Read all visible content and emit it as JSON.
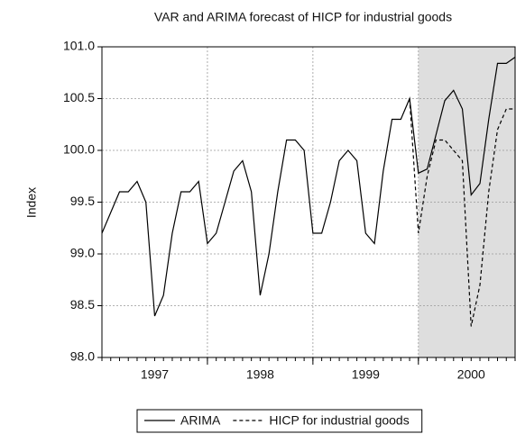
{
  "chart_data": {
    "type": "line",
    "title": "VAR and ARIMA forecast of HICP for industrial goods",
    "y_label": "Index",
    "categories": [
      null,
      null,
      null,
      null,
      null,
      null,
      "1997",
      null,
      null,
      null,
      null,
      null,
      null,
      null,
      null,
      null,
      null,
      null,
      "1998",
      null,
      null,
      null,
      null,
      null,
      null,
      null,
      null,
      null,
      null,
      null,
      "1999",
      null,
      null,
      null,
      null,
      null,
      null,
      null,
      null,
      null,
      null,
      null,
      "2000",
      null,
      null,
      null,
      null,
      null
    ],
    "series": [
      {
        "name": "ARIMA",
        "color": "#000000",
        "dash": "solid",
        "values": [
          99.2,
          99.4,
          99.6,
          99.6,
          99.7,
          99.5,
          98.4,
          98.6,
          99.2,
          99.6,
          99.6,
          99.7,
          99.1,
          99.2,
          99.5,
          99.8,
          99.9,
          99.6,
          98.6,
          99.0,
          99.6,
          100.1,
          100.1,
          100.0,
          99.2,
          99.2,
          99.5,
          99.9,
          100.0,
          99.9,
          99.2,
          99.1,
          99.8,
          100.3,
          100.3,
          100.5,
          99.78,
          99.82,
          100.15,
          100.48,
          100.58,
          100.4,
          99.57,
          99.68,
          100.3,
          100.84,
          100.84,
          100.9
        ]
      },
      {
        "name": "HICP for industrial goods",
        "color": "#000000",
        "dash": "dashed",
        "values": [
          null,
          null,
          null,
          null,
          null,
          null,
          null,
          null,
          null,
          null,
          null,
          null,
          null,
          null,
          null,
          null,
          null,
          null,
          null,
          null,
          null,
          null,
          null,
          null,
          null,
          null,
          null,
          null,
          null,
          null,
          null,
          null,
          null,
          null,
          null,
          100.5,
          99.2,
          99.75,
          100.1,
          100.1,
          100.0,
          99.9,
          98.3,
          98.7,
          99.6,
          100.2,
          100.4,
          100.4
        ]
      }
    ],
    "ylim": [
      98.0,
      101.0
    ],
    "yticks": [
      {
        "value": 98.0,
        "label": "98.0"
      },
      {
        "value": 98.5,
        "label": "98.5"
      },
      {
        "value": 99.0,
        "label": "99.0"
      },
      {
        "value": 99.5,
        "label": "99.5"
      },
      {
        "value": 100.0,
        "label": "100.0"
      },
      {
        "value": 100.5,
        "label": "100.5"
      },
      {
        "value": 101.0,
        "label": "101.0"
      }
    ],
    "grid": true,
    "shade_from_index": 36,
    "shade_color": "#dedede",
    "legend": "bottom"
  }
}
